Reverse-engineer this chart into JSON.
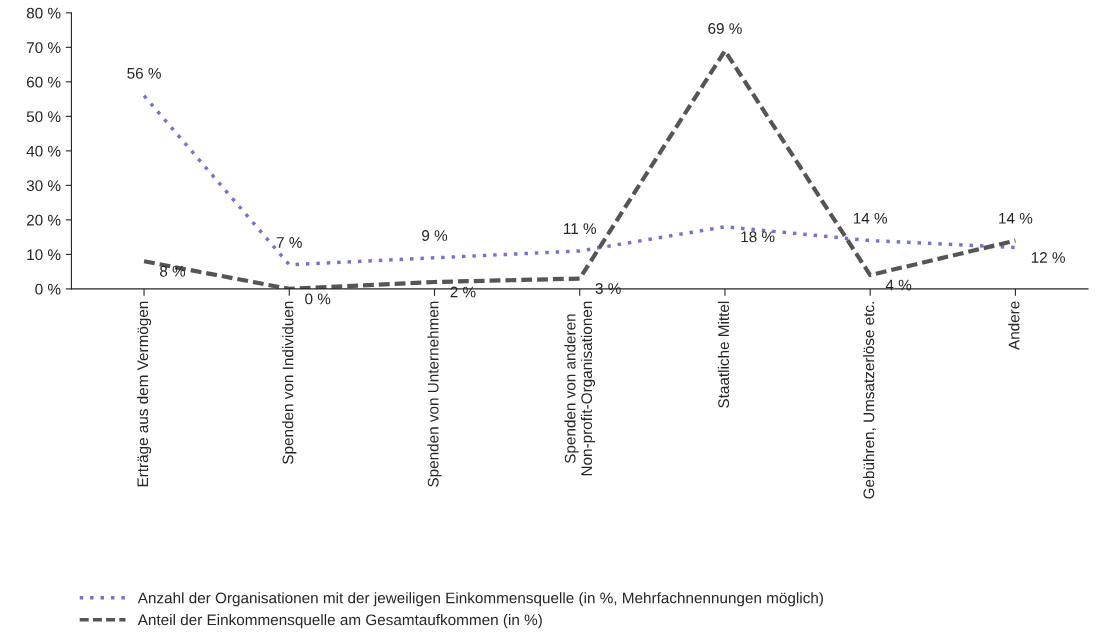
{
  "chart_data": {
    "type": "line",
    "categories": [
      "Erträge aus dem Vermögen",
      "Spenden von Individuen",
      "Spenden von Unternehmen",
      "Spenden von anderen\nNon-profit-Organisationen",
      "Staatliche Mittel",
      "Gebühren, Umsatzerlöse etc.",
      "Andere"
    ],
    "series": [
      {
        "name": "Anzahl der Organisationen mit der jeweiligen Einkommensquelle (in %, Mehrfachnennungen möglich)",
        "color": "#7474cc",
        "line_style": "dotted",
        "values": [
          56,
          7,
          9,
          11,
          18,
          14,
          12
        ],
        "value_labels": [
          "56 %",
          "7 %",
          "9 %",
          "11 %",
          "18 %",
          "14 %",
          "12 %"
        ]
      },
      {
        "name": "Anteil der Einkommensquelle am Gesamtaufkommen (in %)",
        "color": "#555555",
        "line_style": "dashed",
        "values": [
          8,
          0,
          2,
          3,
          69,
          4,
          14
        ],
        "value_labels": [
          "8 %",
          "0 %",
          "2 %",
          "3 %",
          "69 %",
          "4 %",
          "14 %"
        ]
      }
    ],
    "ylim": [
      0,
      80
    ],
    "yticks": [
      {
        "value": 0,
        "label": "0 %"
      },
      {
        "value": 10,
        "label": "10 %"
      },
      {
        "value": 20,
        "label": "20 %"
      },
      {
        "value": 30,
        "label": "30 %"
      },
      {
        "value": 40,
        "label": "40 %"
      },
      {
        "value": 50,
        "label": "50 %"
      },
      {
        "value": 60,
        "label": "60 %"
      },
      {
        "value": 70,
        "label": "70 %"
      },
      {
        "value": 80,
        "label": "80 %"
      }
    ],
    "grid": false,
    "legend": "bottom",
    "marker": "none"
  }
}
